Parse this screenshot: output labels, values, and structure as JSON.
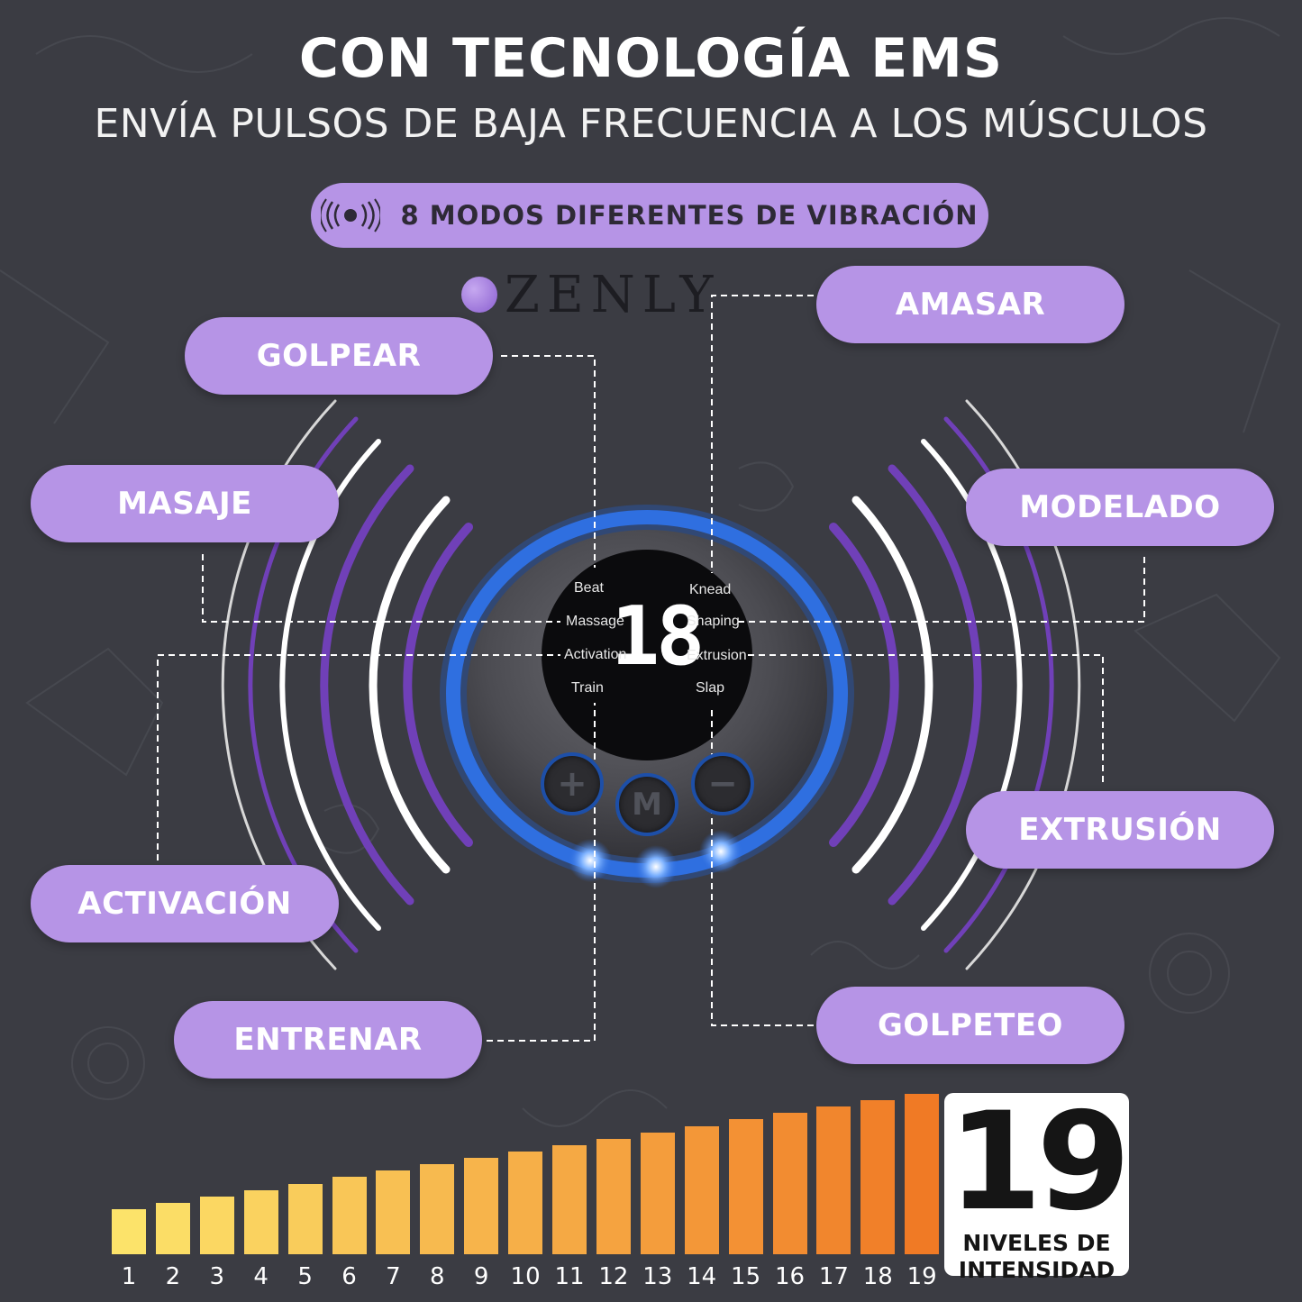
{
  "header": {
    "title": "CON TECNOLOGÍA EMS",
    "subtitle": "ENVÍA PULSOS DE BAJA FRECUENCIA A LOS MÚSCULOS"
  },
  "modes_banner": {
    "label": "8 MODOS DIFERENTES DE VIBRACIÓN",
    "icon": "vibration-icon"
  },
  "brand": {
    "name": "ZENLY"
  },
  "modes": {
    "golpear": "GOLPEAR",
    "masaje": "MASAJE",
    "activacion": "ACTIVACIÓN",
    "entrenar": "ENTRENAR",
    "amasar": "AMASAR",
    "modelado": "MODELADO",
    "extrusion": "EXTRUSIÓN",
    "golpeteo": "GOLPETEO"
  },
  "device": {
    "display_value": "18",
    "labels_left": [
      "Beat",
      "Massage",
      "Activation",
      "Train"
    ],
    "labels_right": [
      "Knead",
      "Shaping",
      "Extrusion",
      "Slap"
    ],
    "buttons": {
      "plus": "+",
      "mode": "M",
      "minus": "−"
    }
  },
  "intensity": {
    "levels": [
      1,
      2,
      3,
      4,
      5,
      6,
      7,
      8,
      9,
      10,
      11,
      12,
      13,
      14,
      15,
      16,
      17,
      18,
      19
    ],
    "big_number": "19",
    "caption_line1": "NIVELES DE",
    "caption_line2": "INTENSIDAD"
  },
  "colors": {
    "background": "#3b3c43",
    "pill": "#b694e6",
    "ring": "#2f6fe0",
    "bar_low": "#fce36a",
    "bar_high": "#f07a25"
  }
}
